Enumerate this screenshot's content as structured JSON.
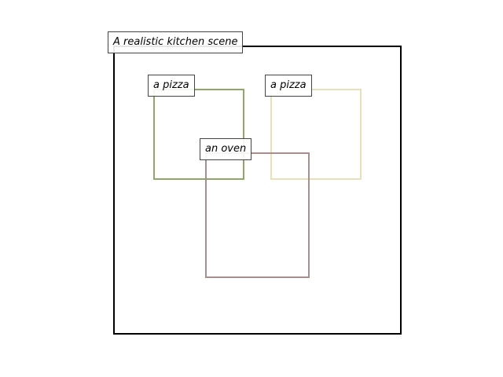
{
  "scene": {
    "caption": "A realistic kitchen scene",
    "frame_color": "#000000"
  },
  "objects": [
    {
      "label": "a pizza",
      "color": "#8fa866"
    },
    {
      "label": "a pizza",
      "color": "#e8e0b8"
    },
    {
      "label": "an oven",
      "color": "#a88f8f"
    }
  ]
}
